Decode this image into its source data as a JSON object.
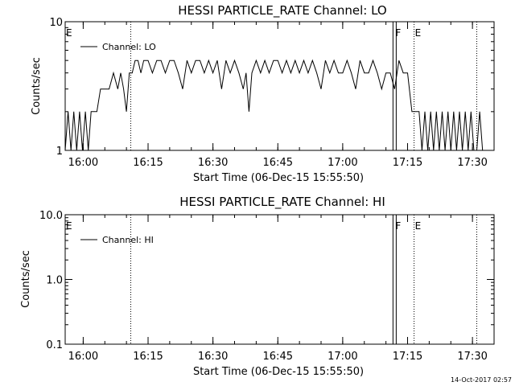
{
  "footer": "14-Oct-2017 02:57",
  "chart_data": [
    {
      "type": "line",
      "title": "HESSI PARTICLE_RATE Channel: LO",
      "xlabel": "Start Time (06-Dec-15 15:55:50)",
      "ylabel": "Counts/sec",
      "yscale": "log",
      "xlim": [
        "15:55:50",
        "17:35:00"
      ],
      "ylim": [
        1,
        10
      ],
      "x_ticks": [
        "16:00",
        "16:15",
        "16:30",
        "16:45",
        "17:00",
        "17:15",
        "17:30"
      ],
      "y_ticks": [
        "1",
        "10"
      ],
      "legend": "top-left",
      "series": [
        {
          "name": "Channel: LO",
          "x": [
            "15:55:50",
            "15:56:30",
            "15:57:10",
            "15:57:50",
            "15:58:30",
            "15:59:10",
            "15:59:50",
            "16:00:30",
            "16:01:10",
            "16:01:50",
            "16:02:30",
            "16:03:10",
            "16:04:00",
            "16:05:00",
            "16:06:00",
            "16:07:00",
            "16:08:00",
            "16:08:40",
            "16:09:20",
            "16:10:00",
            "16:10:40",
            "16:11:20",
            "16:12:00",
            "16:12:40",
            "16:13:20",
            "16:14:00",
            "16:15:00",
            "16:16:00",
            "16:17:00",
            "16:18:00",
            "16:19:00",
            "16:20:00",
            "16:21:00",
            "16:22:00",
            "16:23:00",
            "16:24:00",
            "16:25:00",
            "16:26:00",
            "16:27:00",
            "16:28:00",
            "16:29:00",
            "16:30:00",
            "16:31:00",
            "16:32:00",
            "16:33:00",
            "16:34:00",
            "16:35:00",
            "16:36:00",
            "16:37:00",
            "16:37:40",
            "16:38:20",
            "16:39:00",
            "16:40:00",
            "16:41:00",
            "16:42:00",
            "16:43:00",
            "16:44:00",
            "16:45:00",
            "16:46:00",
            "16:47:00",
            "16:48:00",
            "16:49:00",
            "16:50:00",
            "16:51:00",
            "16:52:00",
            "16:53:00",
            "16:54:00",
            "16:55:00",
            "16:56:00",
            "16:57:00",
            "16:58:00",
            "16:59:00",
            "17:00:00",
            "17:01:00",
            "17:02:00",
            "17:03:00",
            "17:04:00",
            "17:05:00",
            "17:06:00",
            "17:07:00",
            "17:08:00",
            "17:09:00",
            "17:10:00",
            "17:11:00",
            "17:12:00",
            "17:13:00",
            "17:14:00",
            "17:15:00",
            "17:16:00",
            "17:17:00",
            "17:17:40",
            "17:18:20",
            "17:19:00",
            "17:19:40",
            "17:20:20",
            "17:21:00",
            "17:21:40",
            "17:22:20",
            "17:23:00",
            "17:23:40",
            "17:24:20",
            "17:25:00",
            "17:25:40",
            "17:26:20",
            "17:27:00",
            "17:27:40",
            "17:28:20",
            "17:29:00",
            "17:29:40",
            "17:30:20",
            "17:31:00",
            "17:31:40",
            "17:32:20",
            "17:33:00"
          ],
          "y": [
            1,
            2,
            1,
            2,
            1,
            2,
            1,
            2,
            1,
            2,
            2,
            2,
            3,
            3,
            3,
            4,
            3,
            4,
            3,
            2,
            4,
            4,
            5,
            5,
            4,
            5,
            5,
            4,
            5,
            5,
            4,
            5,
            5,
            4,
            3,
            5,
            4,
            5,
            5,
            4,
            5,
            4,
            5,
            3,
            5,
            4,
            5,
            4,
            3,
            4,
            2,
            4,
            5,
            4,
            5,
            4,
            5,
            5,
            4,
            5,
            4,
            5,
            4,
            5,
            4,
            5,
            4,
            3,
            5,
            4,
            5,
            4,
            4,
            5,
            4,
            3,
            5,
            4,
            4,
            5,
            4,
            3,
            4,
            4,
            3,
            5,
            4,
            4,
            2,
            2,
            2,
            1,
            2,
            1,
            2,
            1,
            2,
            1,
            2,
            1,
            2,
            1,
            2,
            1,
            2,
            1,
            2,
            1,
            2,
            1,
            1,
            2,
            1,
            1
          ]
        }
      ],
      "markers": [
        {
          "label": "E",
          "time": "15:55:50",
          "style": "dotted"
        },
        {
          "label": "",
          "time": "16:11:00",
          "style": "dotted"
        },
        {
          "label": "F",
          "time": "17:12:00",
          "style": "solid"
        },
        {
          "label": "E",
          "time": "17:16:30",
          "style": "dotted"
        },
        {
          "label": "",
          "time": "17:31:00",
          "style": "dotted"
        }
      ]
    },
    {
      "type": "line",
      "title": "HESSI PARTICLE_RATE Channel: HI",
      "xlabel": "Start Time (06-Dec-15 15:55:50)",
      "ylabel": "Counts/sec",
      "yscale": "log",
      "xlim": [
        "15:55:50",
        "17:35:00"
      ],
      "ylim": [
        0.1,
        10.0
      ],
      "x_ticks": [
        "16:00",
        "16:15",
        "16:30",
        "16:45",
        "17:00",
        "17:15",
        "17:30"
      ],
      "y_ticks": [
        "0.1",
        "1.0",
        "10.0"
      ],
      "legend": "top-left",
      "series": [
        {
          "name": "Channel: HI",
          "x": [],
          "y": []
        }
      ],
      "markers": [
        {
          "label": "E",
          "time": "15:55:50",
          "style": "dotted"
        },
        {
          "label": "",
          "time": "16:11:00",
          "style": "dotted"
        },
        {
          "label": "F",
          "time": "17:12:00",
          "style": "solid"
        },
        {
          "label": "E",
          "time": "17:16:30",
          "style": "dotted"
        },
        {
          "label": "",
          "time": "17:31:00",
          "style": "dotted"
        }
      ]
    }
  ]
}
